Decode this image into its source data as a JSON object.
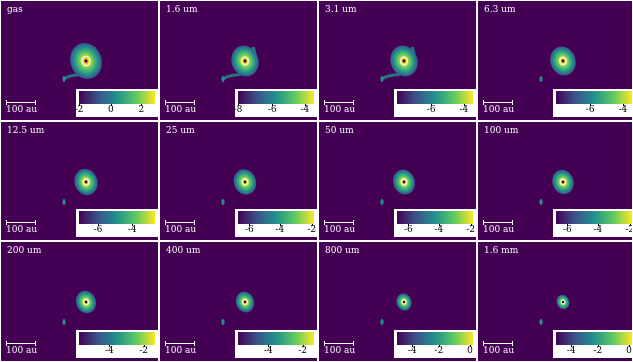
{
  "colormap": [
    "#440154",
    "#3b528b",
    "#21918c",
    "#5ec962",
    "#fde725"
  ],
  "scale_bar_label": "100 au",
  "panels": [
    {
      "label": "gas",
      "ticks": [
        "-2",
        "0",
        "2"
      ],
      "tick_pos": [
        0.0,
        0.42,
        0.82
      ],
      "disk": 1.3,
      "streamer": true
    },
    {
      "label": "1.6 um",
      "ticks": [
        "-8",
        "-6",
        "-4"
      ],
      "tick_pos": [
        0.0,
        0.45,
        0.88
      ],
      "disk": 1.12,
      "streamer": true
    },
    {
      "label": "3.1 um",
      "ticks": [
        "-6",
        "-4"
      ],
      "tick_pos": [
        0.45,
        0.88
      ],
      "disk": 1.12,
      "streamer": true
    },
    {
      "label": "6.3 um",
      "ticks": [
        "-6",
        "-4"
      ],
      "tick_pos": [
        0.45,
        0.88
      ],
      "disk": 1.05,
      "streamer": false
    },
    {
      "label": "12.5 um",
      "ticks": [
        "-6",
        "-4"
      ],
      "tick_pos": [
        0.25,
        0.7
      ],
      "disk": 0.95,
      "streamer": false
    },
    {
      "label": "25 um",
      "ticks": [
        "-6",
        "-4",
        "-2"
      ],
      "tick_pos": [
        0.15,
        0.55,
        0.97
      ],
      "disk": 0.92,
      "streamer": false
    },
    {
      "label": "50 um",
      "ticks": [
        "-6",
        "-4",
        "-2"
      ],
      "tick_pos": [
        0.15,
        0.55,
        0.97
      ],
      "disk": 0.9,
      "streamer": false
    },
    {
      "label": "100 um",
      "ticks": [
        "-6",
        "-4",
        "-2"
      ],
      "tick_pos": [
        0.15,
        0.55,
        0.97
      ],
      "disk": 0.88,
      "streamer": false
    },
    {
      "label": "200 um",
      "ticks": [
        "-4",
        "-2"
      ],
      "tick_pos": [
        0.4,
        0.85
      ],
      "disk": 0.82,
      "streamer": false
    },
    {
      "label": "400 um",
      "ticks": [
        "-4",
        "-2"
      ],
      "tick_pos": [
        0.4,
        0.85
      ],
      "disk": 0.75,
      "streamer": false
    },
    {
      "label": "800 um",
      "ticks": [
        "-4",
        "-2",
        "0"
      ],
      "tick_pos": [
        0.2,
        0.55,
        0.96
      ],
      "disk": 0.62,
      "streamer": false
    },
    {
      "label": "1.6 mm",
      "ticks": [
        "-4",
        "-2",
        "0"
      ],
      "tick_pos": [
        0.2,
        0.55,
        0.96
      ],
      "disk": 0.52,
      "streamer": false
    }
  ]
}
